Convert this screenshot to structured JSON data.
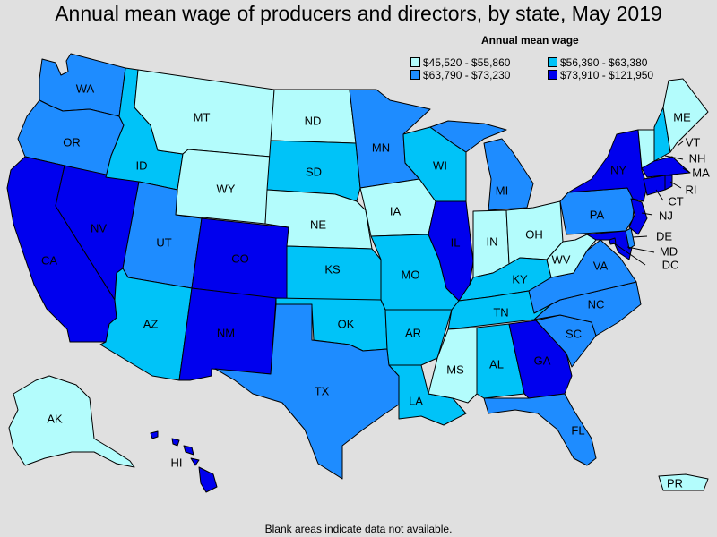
{
  "title": "Annual mean wage of producers and directors, by state, May 2019",
  "legend": {
    "title": "Annual mean wage",
    "items": [
      {
        "label": "$45,520 - $55,860",
        "color": "#b3fcfc"
      },
      {
        "label": "$56,390 - $63,380",
        "color": "#00c3f8"
      },
      {
        "label": "$63,790 - $73,230",
        "color": "#1e8cff"
      },
      {
        "label": "$73,910 - $121,950",
        "color": "#0000ee"
      }
    ]
  },
  "footnote": "Blank areas indicate data not available.",
  "states": [
    {
      "abbr": "WA",
      "class": 2
    },
    {
      "abbr": "OR",
      "class": 2
    },
    {
      "abbr": "CA",
      "class": 3
    },
    {
      "abbr": "NV",
      "class": 3
    },
    {
      "abbr": "ID",
      "class": 1
    },
    {
      "abbr": "MT",
      "class": 0
    },
    {
      "abbr": "WY",
      "class": 0
    },
    {
      "abbr": "UT",
      "class": 2
    },
    {
      "abbr": "AZ",
      "class": 1
    },
    {
      "abbr": "CO",
      "class": 3
    },
    {
      "abbr": "NM",
      "class": 3
    },
    {
      "abbr": "ND",
      "class": 0
    },
    {
      "abbr": "SD",
      "class": 1
    },
    {
      "abbr": "NE",
      "class": 0
    },
    {
      "abbr": "KS",
      "class": 1
    },
    {
      "abbr": "OK",
      "class": 1
    },
    {
      "abbr": "TX",
      "class": 2
    },
    {
      "abbr": "MN",
      "class": 2
    },
    {
      "abbr": "IA",
      "class": 0
    },
    {
      "abbr": "MO",
      "class": 1
    },
    {
      "abbr": "AR",
      "class": 1
    },
    {
      "abbr": "LA",
      "class": 1
    },
    {
      "abbr": "WI",
      "class": 1
    },
    {
      "abbr": "IL",
      "class": 3
    },
    {
      "abbr": "MI",
      "class": 2
    },
    {
      "abbr": "IN",
      "class": 0
    },
    {
      "abbr": "OH",
      "class": 0
    },
    {
      "abbr": "KY",
      "class": 1
    },
    {
      "abbr": "TN",
      "class": 1
    },
    {
      "abbr": "MS",
      "class": 0
    },
    {
      "abbr": "AL",
      "class": 1
    },
    {
      "abbr": "GA",
      "class": 3
    },
    {
      "abbr": "FL",
      "class": 2
    },
    {
      "abbr": "SC",
      "class": 2
    },
    {
      "abbr": "NC",
      "class": 2
    },
    {
      "abbr": "VA",
      "class": 2
    },
    {
      "abbr": "WV",
      "class": 0
    },
    {
      "abbr": "PA",
      "class": 2
    },
    {
      "abbr": "NY",
      "class": 3
    },
    {
      "abbr": "VT",
      "class": 0
    },
    {
      "abbr": "NH",
      "class": 1
    },
    {
      "abbr": "ME",
      "class": 0
    },
    {
      "abbr": "MA",
      "class": 3
    },
    {
      "abbr": "RI",
      "class": 3
    },
    {
      "abbr": "CT",
      "class": 3
    },
    {
      "abbr": "NJ",
      "class": 3
    },
    {
      "abbr": "DE",
      "class": 2
    },
    {
      "abbr": "MD",
      "class": 3
    },
    {
      "abbr": "DC",
      "class": 3
    },
    {
      "abbr": "AK",
      "class": 0
    },
    {
      "abbr": "HI",
      "class": 3
    },
    {
      "abbr": "PR",
      "class": 0
    }
  ]
}
